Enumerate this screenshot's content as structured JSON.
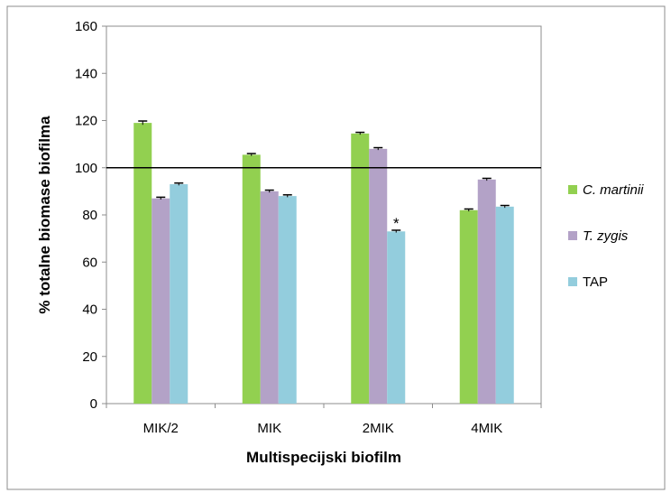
{
  "chart_data": {
    "type": "bar",
    "title": "",
    "xlabel": "Multispecijski biofilm",
    "ylabel": "% totalne biomase biofilma",
    "categories": [
      "MIK/2",
      "MIK",
      "2MIK",
      "4MIK"
    ],
    "ylim": [
      0,
      160
    ],
    "yticks": [
      0,
      20,
      40,
      60,
      80,
      100,
      120,
      140,
      160
    ],
    "grid": false,
    "legend_position": "right",
    "reference_line": 100,
    "series": [
      {
        "name": "C. martinii",
        "color": "#92d050",
        "italic": true,
        "values": [
          119,
          105.5,
          114.5,
          82
        ],
        "errors": [
          0.8,
          0.5,
          0.5,
          0.5
        ]
      },
      {
        "name": "T. zygis",
        "color": "#b3a2c7",
        "italic": true,
        "values": [
          87,
          90,
          108,
          95
        ],
        "errors": [
          0.5,
          0.5,
          0.5,
          0.5
        ]
      },
      {
        "name": "TAP",
        "color": "#93cddd",
        "italic": false,
        "values": [
          93,
          88,
          73,
          83.5
        ],
        "errors": [
          0.5,
          0.5,
          0.5,
          0.5
        ]
      }
    ],
    "annotations": [
      {
        "text": "*",
        "category_index": 2,
        "series_index": 2
      }
    ]
  }
}
